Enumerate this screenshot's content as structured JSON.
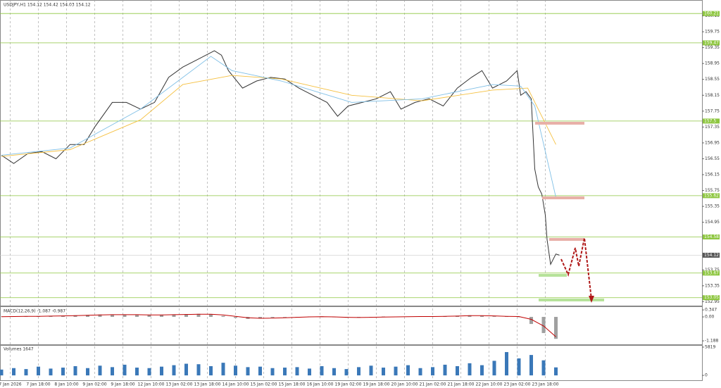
{
  "chart_data": [
    {
      "type": "line",
      "title": "USDJPY,H1  154.12 154.42 154.03 154.12",
      "xlim": [
        0,
        398
      ],
      "ylim": [
        152.85,
        160.55
      ],
      "yticks": [
        160.15,
        159.75,
        159.35,
        158.95,
        158.55,
        158.15,
        157.75,
        157.35,
        156.95,
        156.55,
        156.15,
        155.75,
        155.35,
        154.95,
        153.75,
        153.35,
        152.95
      ],
      "xticks": [
        {
          "value": 5,
          "label": "7 Jan 2026"
        },
        {
          "value": 21,
          "label": "7 Jan 18:00"
        },
        {
          "value": 37,
          "label": "8 Jan 10:00"
        },
        {
          "value": 53,
          "label": "9 Jan 02:00"
        },
        {
          "value": 69,
          "label": "9 Jan 18:00"
        },
        {
          "value": 85,
          "label": "12 Jan 10:00"
        },
        {
          "value": 101,
          "label": "13 Jan 02:00"
        },
        {
          "value": 117,
          "label": "13 Jan 18:00"
        },
        {
          "value": 133,
          "label": "14 Jan 10:00"
        },
        {
          "value": 149,
          "label": "15 Jan 02:00"
        },
        {
          "value": 165,
          "label": "15 Jan 18:00"
        },
        {
          "value": 181,
          "label": "16 Jan 10:00"
        },
        {
          "value": 197,
          "label": "19 Jan 02:00"
        },
        {
          "value": 213,
          "label": "19 Jan 18:00"
        },
        {
          "value": 229,
          "label": "20 Jan 10:00"
        },
        {
          "value": 245,
          "label": "21 Jan 02:00"
        },
        {
          "value": 261,
          "label": "21 Jan 18:00"
        },
        {
          "value": 277,
          "label": "22 Jan 10:00"
        },
        {
          "value": 293,
          "label": "23 Jan 02:00"
        },
        {
          "value": 309,
          "label": "23 Jan 18:00"
        }
      ],
      "levels": [
        160.21,
        159.47,
        157.5,
        155.62,
        154.58,
        153.67,
        153.05
      ],
      "level_color": "#8dc63f",
      "last_price": 154.12,
      "series": [
        {
          "color": "#333333",
          "x": [
            0,
            7,
            15,
            23,
            31,
            39,
            47,
            53,
            63,
            71,
            79,
            87,
            95,
            103,
            111,
            121,
            125,
            129,
            137,
            145,
            153,
            161,
            169,
            177,
            185,
            191,
            197,
            205,
            213,
            221,
            227,
            235,
            243,
            251,
            259,
            267,
            273,
            279,
            287,
            293,
            295,
            298,
            301,
            303,
            305,
            307,
            309,
            310,
            312,
            315,
            317
          ],
          "values": [
            156.64,
            156.43,
            156.68,
            156.73,
            156.55,
            156.91,
            156.91,
            157.35,
            157.97,
            157.97,
            157.8,
            157.97,
            158.6,
            158.86,
            159.04,
            159.27,
            159.16,
            158.77,
            158.33,
            158.51,
            158.6,
            158.56,
            158.33,
            158.15,
            157.97,
            157.62,
            157.88,
            157.97,
            158.06,
            158.24,
            157.8,
            157.97,
            158.06,
            157.88,
            158.33,
            158.6,
            158.77,
            158.33,
            158.51,
            158.77,
            158.15,
            158.24,
            158.06,
            156.29,
            155.84,
            155.66,
            155.13,
            154.51,
            153.89,
            154.15,
            154.12
          ]
        },
        {
          "color": "#f5c040",
          "x": [
            0,
            39,
            79,
            103,
            131,
            159,
            199,
            239,
            279,
            299,
            315
          ],
          "values": [
            156.61,
            156.78,
            157.53,
            158.42,
            158.65,
            158.56,
            158.15,
            158.01,
            158.28,
            158.33,
            156.91
          ]
        },
        {
          "color": "#7fbfe6",
          "x": [
            0,
            39,
            79,
            119,
            131,
            159,
            199,
            239,
            279,
            295,
            303,
            315
          ],
          "values": [
            156.64,
            156.82,
            157.8,
            159.13,
            158.77,
            158.51,
            157.97,
            158.06,
            158.42,
            158.38,
            157.88,
            155.58
          ]
        }
      ]
    },
    {
      "type": "macd",
      "title": "MACD(12,26,9) -1.087 -0.987",
      "xlim": [
        0,
        398
      ],
      "ylim": [
        -1.36,
        0.49
      ],
      "yticks": [
        0.347,
        {
          "value": 0,
          "label": "0.00"
        },
        -1.188
      ],
      "x": [
        0,
        7,
        14,
        21,
        28,
        35,
        42,
        49,
        56,
        63,
        70,
        77,
        84,
        91,
        98,
        105,
        112,
        119,
        126,
        133,
        140,
        147,
        154,
        161,
        168,
        175,
        182,
        189,
        196,
        203,
        210,
        217,
        224,
        231,
        238,
        245,
        252,
        259,
        266,
        273,
        280,
        287,
        294,
        301,
        308,
        315
      ],
      "series": [
        {
          "color": "#a0a0a0",
          "values": [
            0.02,
            0.03,
            0.03,
            0.04,
            0.05,
            0.06,
            0.08,
            0.1,
            0.12,
            0.12,
            0.11,
            0.1,
            0.09,
            0.1,
            0.12,
            0.14,
            0.15,
            0.13,
            0.05,
            -0.05,
            -0.1,
            -0.08,
            -0.04,
            -0.02,
            0.0,
            0.02,
            0.03,
            -0.02,
            -0.04,
            -0.03,
            0.0,
            0.02,
            0.01,
            0.02,
            0.03,
            0.02,
            0.04,
            0.06,
            0.08,
            0.05,
            0.03,
            0.02,
            0.0,
            -0.35,
            -0.8,
            -1.087
          ]
        },
        {
          "color": "#c00000",
          "values": [
            0.01,
            0.02,
            0.03,
            0.03,
            0.04,
            0.05,
            0.06,
            0.08,
            0.1,
            0.11,
            0.11,
            0.11,
            0.1,
            0.1,
            0.11,
            0.12,
            0.13,
            0.13,
            0.1,
            0.03,
            -0.04,
            -0.07,
            -0.06,
            -0.04,
            -0.02,
            0.0,
            0.01,
            0.0,
            -0.02,
            -0.03,
            -0.02,
            -0.01,
            0.0,
            0.01,
            0.02,
            0.02,
            0.03,
            0.04,
            0.06,
            0.06,
            0.05,
            0.03,
            0.02,
            -0.12,
            -0.45,
            -0.987
          ]
        }
      ]
    },
    {
      "type": "bar",
      "title": "Volumes 1647",
      "color": "#3a78b8",
      "xlim": [
        0,
        398
      ],
      "ylim": [
        -1000,
        6100
      ],
      "yticks": [
        5819,
        0
      ],
      "x": [
        0,
        7,
        14,
        21,
        28,
        35,
        42,
        49,
        56,
        63,
        70,
        77,
        84,
        91,
        98,
        105,
        112,
        119,
        126,
        133,
        140,
        147,
        154,
        161,
        168,
        175,
        182,
        189,
        196,
        203,
        210,
        217,
        224,
        231,
        238,
        245,
        252,
        259,
        266,
        273,
        280,
        287,
        294,
        301,
        308,
        315
      ],
      "values": [
        1200,
        1500,
        1300,
        1800,
        1400,
        1600,
        1900,
        1500,
        2000,
        1700,
        2200,
        1600,
        1500,
        1800,
        2100,
        2400,
        2300,
        1900,
        2600,
        2000,
        1700,
        1800,
        1500,
        1600,
        1700,
        1400,
        1900,
        1500,
        1300,
        1700,
        2000,
        1600,
        1800,
        2100,
        1500,
        1700,
        2200,
        1900,
        2500,
        2100,
        3000,
        4800,
        3500,
        4200,
        3100,
        1647
      ]
    }
  ]
}
